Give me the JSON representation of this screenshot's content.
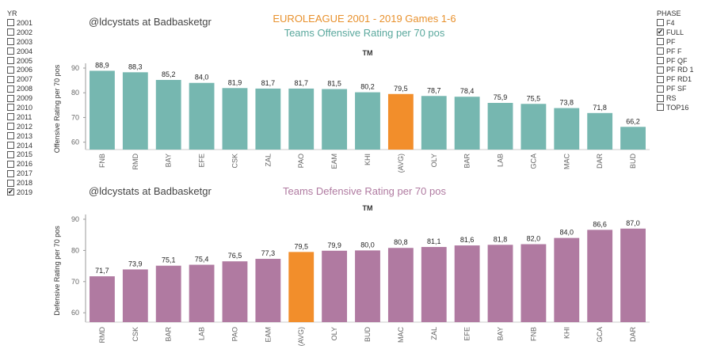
{
  "filters": {
    "year": {
      "title": "YR",
      "items": [
        {
          "label": "2001",
          "checked": false
        },
        {
          "label": "2002",
          "checked": false
        },
        {
          "label": "2003",
          "checked": false
        },
        {
          "label": "2004",
          "checked": false
        },
        {
          "label": "2005",
          "checked": false
        },
        {
          "label": "2006",
          "checked": false
        },
        {
          "label": "2007",
          "checked": false
        },
        {
          "label": "2008",
          "checked": false
        },
        {
          "label": "2009",
          "checked": false
        },
        {
          "label": "2010",
          "checked": false
        },
        {
          "label": "2011",
          "checked": false
        },
        {
          "label": "2012",
          "checked": false
        },
        {
          "label": "2013",
          "checked": false
        },
        {
          "label": "2014",
          "checked": false
        },
        {
          "label": "2015",
          "checked": false
        },
        {
          "label": "2016",
          "checked": false
        },
        {
          "label": "2017",
          "checked": false
        },
        {
          "label": "2018",
          "checked": false
        },
        {
          "label": "2019",
          "checked": true
        }
      ]
    },
    "phase": {
      "title": "PHASE",
      "items": [
        {
          "label": "F4",
          "checked": false
        },
        {
          "label": "FULL",
          "checked": true
        },
        {
          "label": "PF",
          "checked": false
        },
        {
          "label": "PF F",
          "checked": false
        },
        {
          "label": "PF QF",
          "checked": false
        },
        {
          "label": "PF RD 1",
          "checked": false
        },
        {
          "label": "PF RD1",
          "checked": false
        },
        {
          "label": "PF SF",
          "checked": false
        },
        {
          "label": "RS",
          "checked": false
        },
        {
          "label": "TOP16",
          "checked": false
        }
      ]
    }
  },
  "header": {
    "title": "EUROLEAGUE 2001 - 2019 Games 1-6",
    "watermark_top": "@ldcystats at Badbasketgr",
    "watermark_bottom": "@ldcystats at Badbasketgr"
  },
  "colors": {
    "offense": "#76b7b0",
    "defense": "#b07aa1",
    "highlight": "#f28e2b"
  },
  "chart_data": [
    {
      "type": "bar",
      "title": "Teams Offensive Rating per 70 pos",
      "xlabel": "TM",
      "ylabel": "Offensive Rating per 70 pos",
      "ylim": [
        57,
        90
      ],
      "yticks": [
        60,
        70,
        80,
        90
      ],
      "highlight": "(AVG)",
      "grid": false,
      "categories": [
        "FNB",
        "RMD",
        "BAY",
        "EFE",
        "CSK",
        "ZAL",
        "PAO",
        "EAM",
        "KHI",
        "(AVG)",
        "OLY",
        "BAR",
        "LAB",
        "GCA",
        "MAC",
        "DAR",
        "BUD"
      ],
      "values": [
        88.9,
        88.3,
        85.2,
        84.0,
        81.9,
        81.7,
        81.7,
        81.5,
        80.2,
        79.5,
        78.7,
        78.4,
        75.9,
        75.5,
        73.8,
        71.8,
        66.2
      ],
      "value_labels": [
        "88,9",
        "88,3",
        "85,2",
        "84,0",
        "81,9",
        "81,7",
        "81,7",
        "81,5",
        "80,2",
        "79,5",
        "78,7",
        "78,4",
        "75,9",
        "75,5",
        "73,8",
        "71,8",
        "66,2"
      ]
    },
    {
      "type": "bar",
      "title": "Teams Defensive Rating per 70 pos",
      "xlabel": "TM",
      "ylabel": "Defensive Rating per 70 pos",
      "ylim": [
        57,
        90
      ],
      "yticks": [
        60,
        70,
        80,
        90
      ],
      "highlight": "(AVG)",
      "grid": false,
      "categories": [
        "RMD",
        "CSK",
        "BAR",
        "LAB",
        "PAO",
        "EAM",
        "(AVG)",
        "OLY",
        "BUD",
        "MAC",
        "ZAL",
        "EFE",
        "BAY",
        "FNB",
        "KHI",
        "GCA",
        "DAR"
      ],
      "values": [
        71.7,
        73.9,
        75.1,
        75.4,
        76.5,
        77.3,
        79.5,
        79.9,
        80.0,
        80.8,
        81.1,
        81.6,
        81.8,
        82.0,
        84.0,
        86.6,
        87.0
      ],
      "value_labels": [
        "71,7",
        "73,9",
        "75,1",
        "75,4",
        "76,5",
        "77,3",
        "79,5",
        "79,9",
        "80,0",
        "80,8",
        "81,1",
        "81,6",
        "81,8",
        "82,0",
        "84,0",
        "86,6",
        "87,0"
      ]
    }
  ]
}
